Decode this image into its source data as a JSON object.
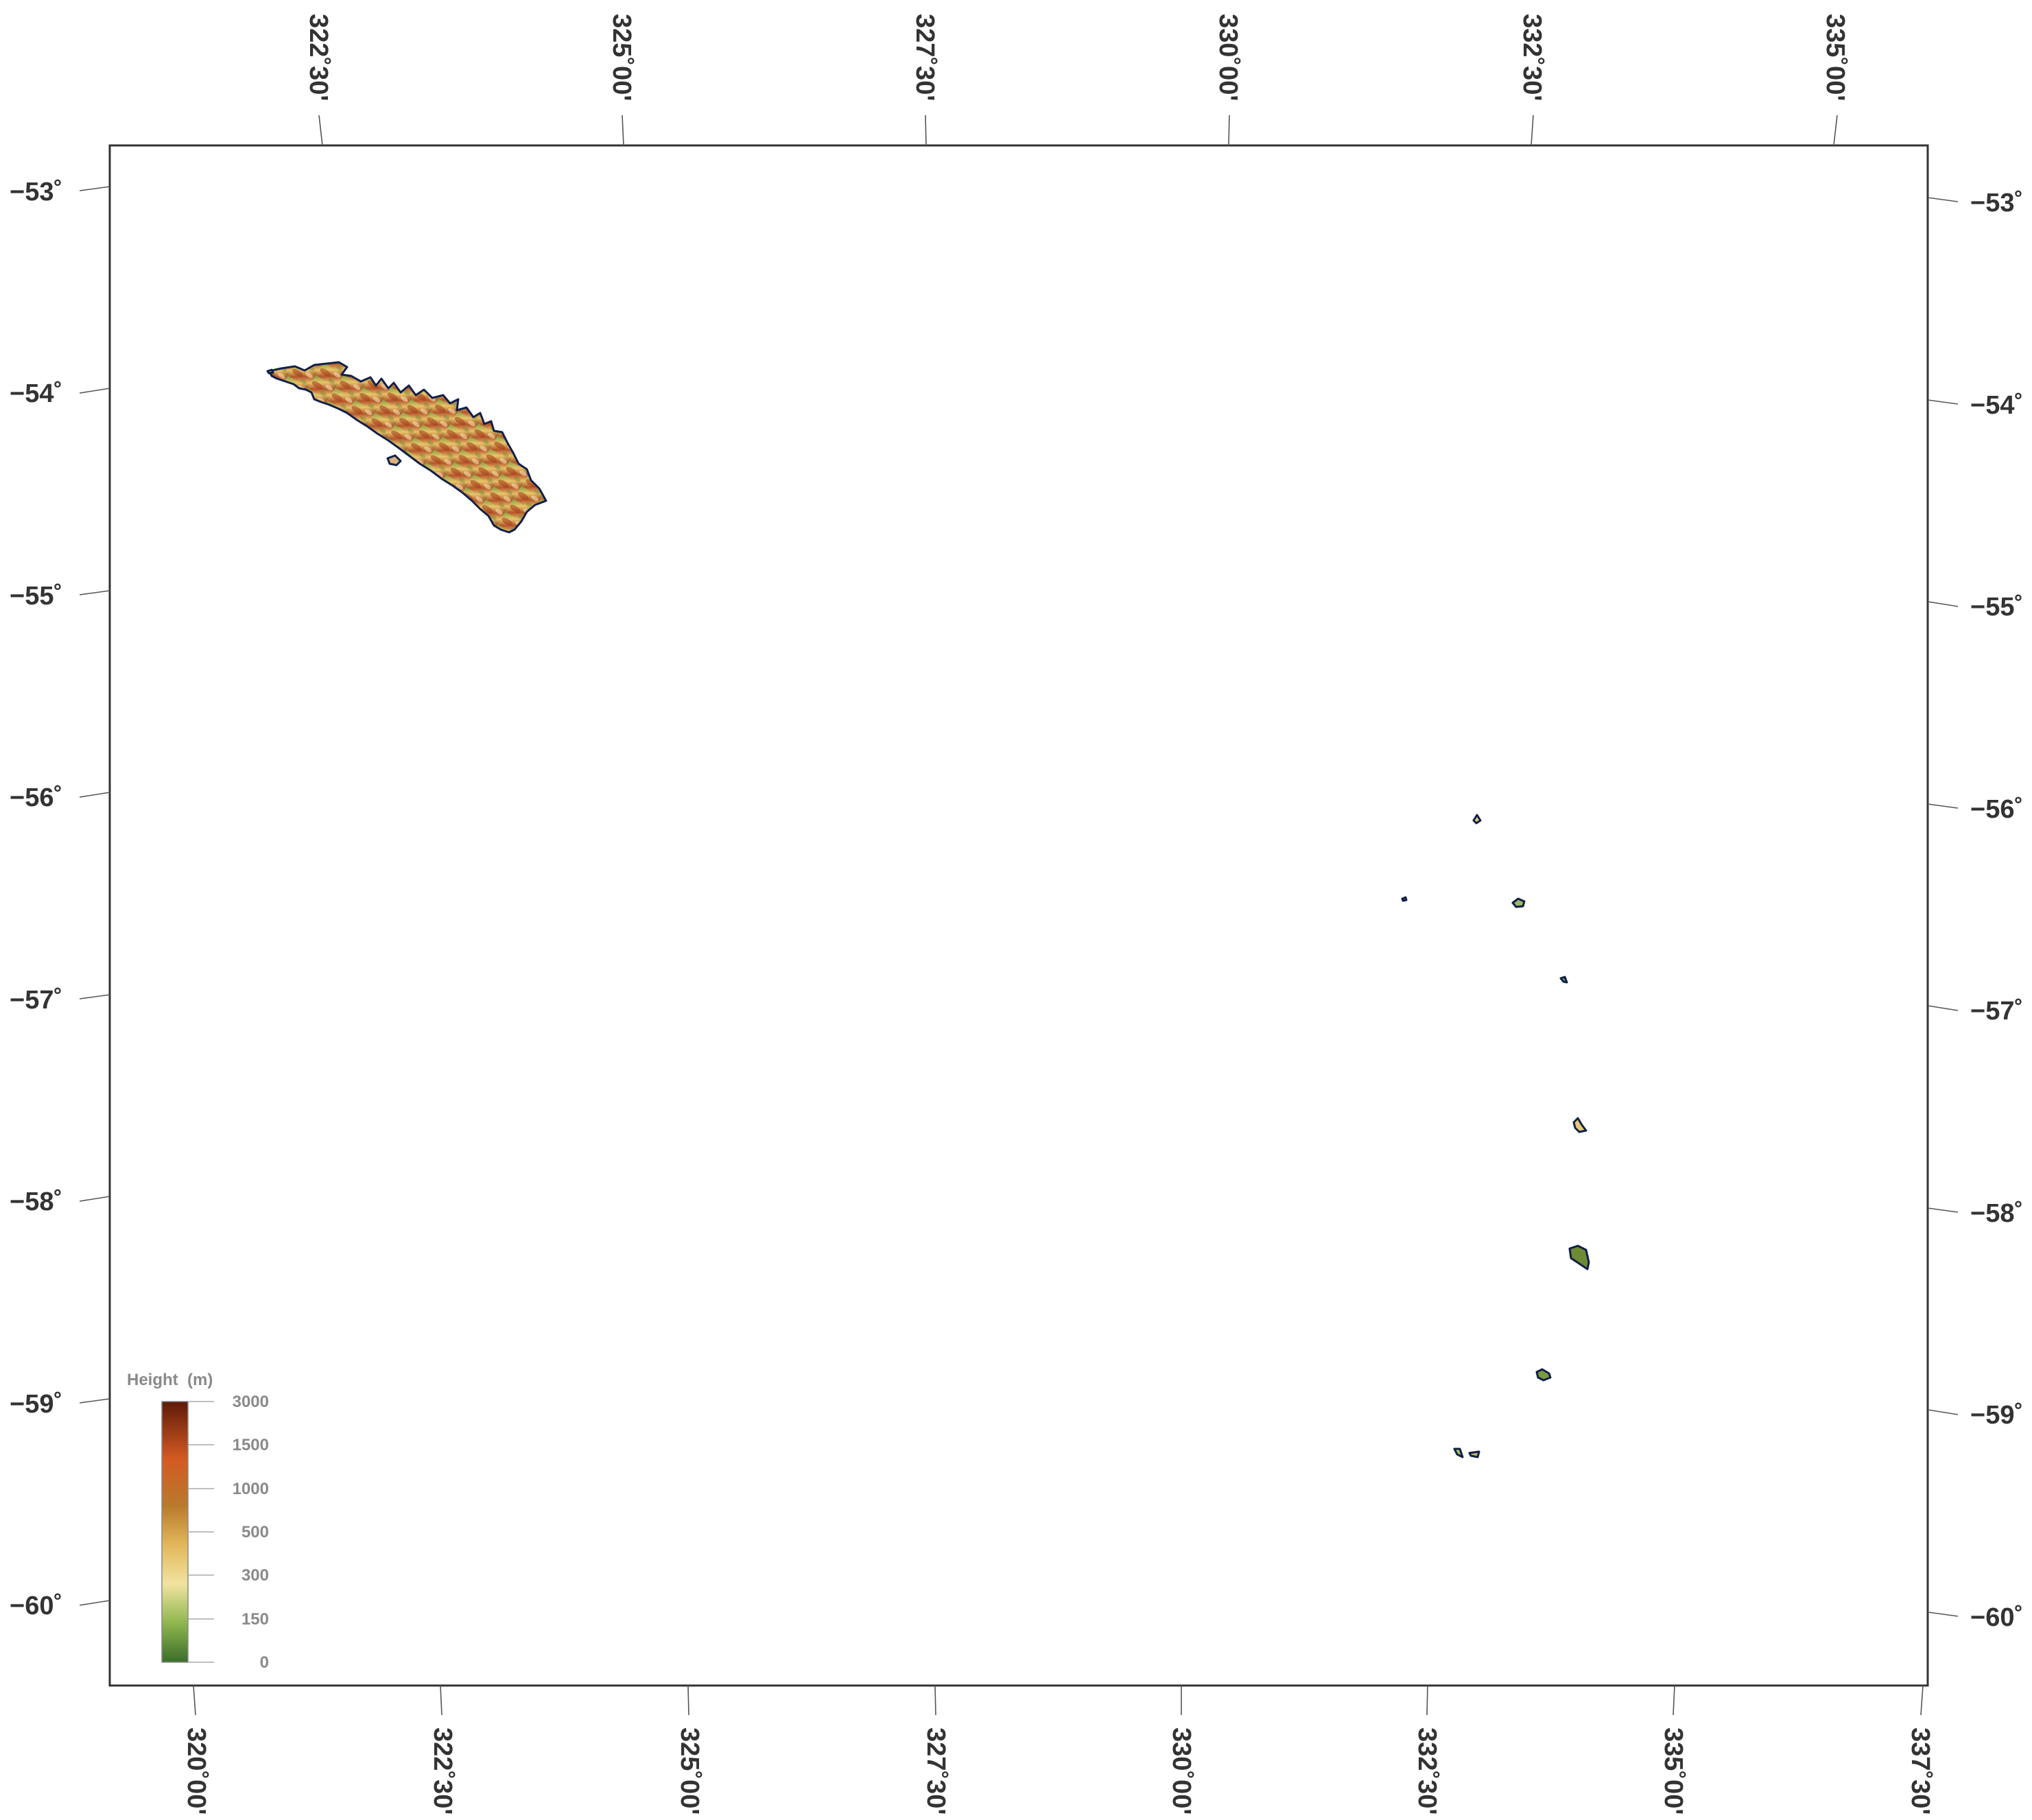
{
  "map": {
    "top_lon_labels": [
      "322˚30'",
      "325˚00'",
      "327˚30'",
      "330˚00'",
      "332˚30'",
      "335˚00'"
    ],
    "bottom_lon_labels": [
      "320˚00'",
      "322˚30'",
      "325˚00'",
      "327˚30'",
      "330˚00'",
      "332˚30'",
      "335˚00'",
      "337˚30'"
    ],
    "left_lat_labels": [
      "−53˚",
      "−54˚",
      "−55˚",
      "−56˚",
      "−57˚",
      "−58˚",
      "−59˚",
      "−60˚"
    ],
    "right_lat_labels": [
      "−53˚",
      "−54˚",
      "−55˚",
      "−56˚",
      "−57˚",
      "−58˚",
      "−59˚",
      "−60˚"
    ],
    "features": [
      "south-georgia-island",
      "south-sandwich-islands"
    ]
  },
  "legend": {
    "title": "Height  (m)",
    "values": [
      "3000",
      "1500",
      "1000",
      "500",
      "300",
      "150",
      "0"
    ],
    "colors": [
      "#6b1e0a",
      "#c2451b",
      "#e88a3a",
      "#b8742a",
      "#f2d88a",
      "#a8c85a",
      "#3a6e2a"
    ]
  },
  "colors": {
    "frame": "#333333",
    "coast": "#10204a",
    "terrain_low": "#5b8a34",
    "terrain_mid": "#e9c66a",
    "terrain_high": "#a8421a"
  }
}
